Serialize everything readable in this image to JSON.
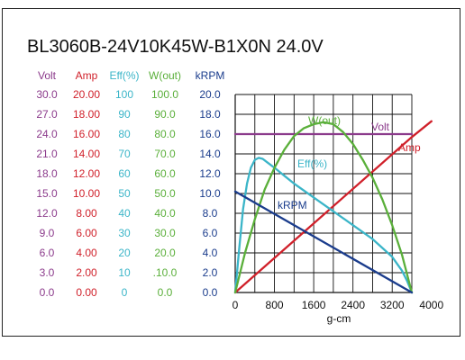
{
  "chart_data": {
    "type": "line",
    "title": "BL3060B-24V10K45W-B1X0N   24.0V",
    "xlabel": "g-cm",
    "x_ticks": [
      "0",
      "800",
      "1600",
      "2400",
      "3200",
      "4000"
    ],
    "xlim": [
      0,
      4000
    ],
    "grid": true,
    "axes": [
      {
        "name": "Volt",
        "color": "#8B3A8B",
        "ticks": [
          "30.0",
          "27.0",
          "24.0",
          "21.0",
          "18.0",
          "15.0",
          "12.0",
          "9.0",
          "6.0",
          "3.0",
          "0.0"
        ]
      },
      {
        "name": "Amp",
        "color": "#D0202A",
        "ticks": [
          "20.00",
          "18.00",
          "16.00",
          "14.00",
          "12.00",
          "10.00",
          "8.00",
          "6.00",
          "4.00",
          "2.00",
          "0.00"
        ]
      },
      {
        "name": "Eff(%)",
        "color": "#3BB5C8",
        "ticks": [
          "100",
          "90",
          "80",
          "70",
          "60",
          "50",
          "40",
          "30",
          "20",
          "10",
          "0"
        ]
      },
      {
        "name": "W(out)",
        "color": "#5AAF3A",
        "ticks": [
          "100.0",
          "90.0",
          "80.0",
          "70.0",
          "60.0",
          "50.0",
          "40.0",
          "30.0",
          "20.0",
          ".10.0",
          "0.0"
        ]
      },
      {
        "name": "kRPM",
        "color": "#1A3C8C",
        "ticks": [
          "20.0",
          "18.0",
          "16.0",
          "14.0",
          "12.0",
          "10.0",
          "8.0",
          "6.0",
          "4.0",
          "2.0",
          "0.0"
        ]
      }
    ],
    "series": [
      {
        "name": "Volt",
        "color": "#8B3A8B",
        "axis": 0,
        "x": [
          0,
          3600
        ],
        "y": [
          24.0,
          24.0
        ]
      },
      {
        "name": "Amp",
        "color": "#D0202A",
        "axis": 1,
        "x": [
          0,
          3600,
          4000
        ],
        "y": [
          0.0,
          15.7,
          17.3
        ]
      },
      {
        "name": "Eff(%)",
        "color": "#3BB5C8",
        "axis": 2,
        "x": [
          0,
          80,
          160,
          240,
          320,
          400,
          480,
          560,
          640,
          800,
          1000,
          1200,
          1600,
          2000,
          2400,
          2800,
          3200,
          3400,
          3500,
          3600
        ],
        "y": [
          0,
          22,
          42,
          55,
          63,
          67,
          68,
          67.5,
          66,
          63,
          59,
          55,
          48,
          41,
          34,
          27,
          18,
          11,
          6,
          0
        ]
      },
      {
        "name": "W(out)",
        "color": "#5AAF3A",
        "axis": 3,
        "x": [
          0,
          200,
          400,
          600,
          800,
          1000,
          1200,
          1400,
          1600,
          1800,
          2000,
          2200,
          2400,
          2600,
          2800,
          3000,
          3200,
          3400,
          3600
        ],
        "y": [
          0,
          20,
          37,
          52,
          63,
          72,
          79,
          83,
          85,
          86,
          85,
          81,
          75,
          67,
          58,
          47,
          34,
          19,
          0
        ]
      },
      {
        "name": "kRPM",
        "color": "#1A3C8C",
        "axis": 4,
        "x": [
          0,
          3600
        ],
        "y": [
          10.2,
          0.0
        ]
      }
    ]
  }
}
